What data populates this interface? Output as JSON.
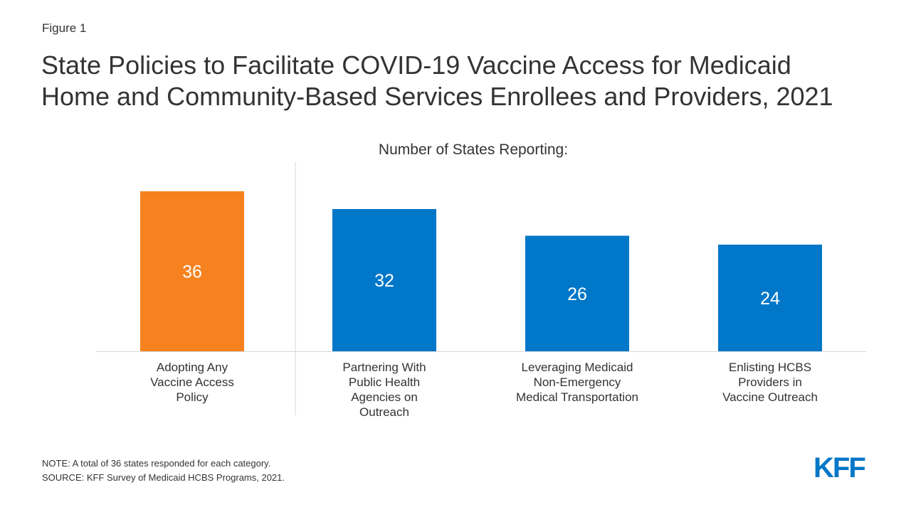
{
  "figure_label": "Figure 1",
  "title_lines": [
    "State Policies to Facilitate COVID-19 Vaccine Access for Medicaid",
    "Home and Community-Based Services Enrollees and Providers, 2021"
  ],
  "chart_data": {
    "type": "bar",
    "subtitle": "Number of States Reporting:",
    "categories": [
      [
        "Adopting Any",
        "Vaccine Access",
        "Policy"
      ],
      [
        "Partnering With",
        "Public Health",
        "Agencies on",
        "Outreach"
      ],
      [
        "Leveraging Medicaid",
        "Non-Emergency",
        "Medical Transportation"
      ],
      [
        "Enlisting HCBS",
        "Providers in",
        "Vaccine Outreach"
      ]
    ],
    "values": [
      36,
      32,
      26,
      24
    ],
    "data_labels": [
      "36",
      "32",
      "26",
      "24"
    ],
    "bar_colors": [
      "#f5821f",
      "#0077c8",
      "#0077c8",
      "#0077c8"
    ],
    "ylim": [
      0,
      36
    ],
    "separator_after_index": 0,
    "grid": false,
    "legend": "none"
  },
  "footer": {
    "note": "NOTE: A total of 36 states responded for each category.",
    "source": "SOURCE: KFF Survey of Medicaid HCBS Programs, 2021."
  },
  "logo_text": "KFF",
  "colors": {
    "text": "#333333",
    "accent": "#f5821f",
    "primary": "#0077c8",
    "axis": "#d9d9d9",
    "bar_label": "#ffffff"
  }
}
